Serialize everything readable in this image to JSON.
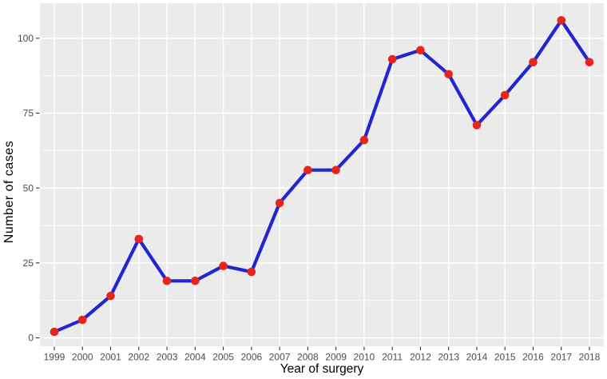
{
  "chart_data": {
    "type": "line",
    "title": "",
    "xlabel": "Year of surgery",
    "ylabel": "Number of cases",
    "x": [
      1999,
      2000,
      2001,
      2002,
      2003,
      2004,
      2005,
      2006,
      2007,
      2008,
      2009,
      2010,
      2011,
      2012,
      2013,
      2014,
      2015,
      2016,
      2017,
      2018
    ],
    "series": [
      {
        "name": "Number of cases",
        "values": [
          2,
          6,
          14,
          33,
          19,
          19,
          24,
          22,
          45,
          56,
          56,
          66,
          93,
          96,
          88,
          71,
          81,
          92,
          106,
          92
        ]
      }
    ],
    "x_tick_labels": [
      "1999",
      "2000",
      "2001",
      "2002",
      "2003",
      "2004",
      "2005",
      "2006",
      "2007",
      "2008",
      "2009",
      "2010",
      "2011",
      "2012",
      "2013",
      "2014",
      "2015",
      "2016",
      "2017",
      "2018"
    ],
    "y_ticks": [
      0,
      25,
      50,
      75,
      100
    ],
    "y_tick_labels": [
      "0",
      "25",
      "50",
      "75",
      "100"
    ],
    "y_minor_ticks": [
      12.5,
      37.5,
      62.5,
      87.5
    ],
    "xlim": [
      1998.49,
      2018.51
    ],
    "ylim": [
      -2.8,
      111.7
    ],
    "grid": "major-xy + minor-y",
    "legend": "none",
    "style": "ggplot-gray-theme",
    "colors": {
      "line": "#2126d1",
      "point": "#e8251b",
      "panel_bg": "#ebebeb",
      "grid_major": "#ffffff",
      "grid_minor": "#ffffff",
      "tick_mark": "#333333",
      "tick_label": "#4d4d4d",
      "axis_title": "#000000",
      "figure_bg": "#ffffff"
    }
  }
}
